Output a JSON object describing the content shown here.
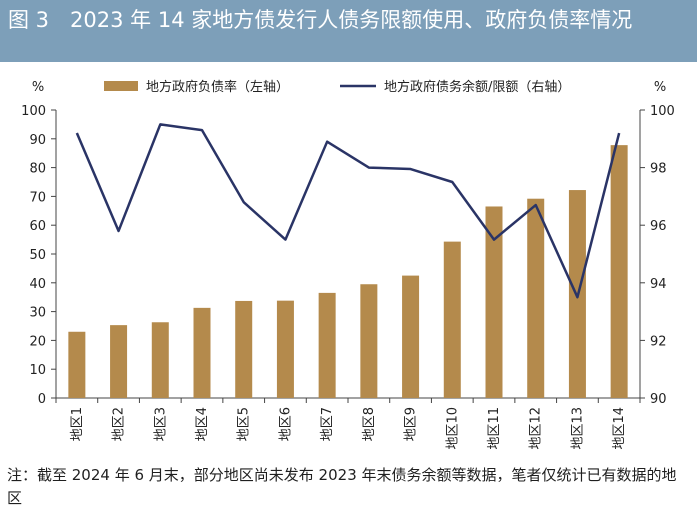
{
  "header": {
    "title": "图 3　2023 年 14 家地方债发行人债务限额使用、政府负债率情况"
  },
  "colors": {
    "header_bg": "#7d9fb9",
    "bar": "#b48a4c",
    "line": "#2a3466",
    "axis": "#444444"
  },
  "chart_data": {
    "type": "bar+line",
    "categories": [
      "地区1",
      "地区2",
      "地区3",
      "地区4",
      "地区5",
      "地区6",
      "地区7",
      "地区8",
      "地区9",
      "地区10",
      "地区11",
      "地区12",
      "地区13",
      "地区14"
    ],
    "series": [
      {
        "name": "地方政府负债率（左轴）",
        "type": "bar",
        "axis": "left",
        "values": [
          23,
          25.3,
          26.3,
          31.3,
          33.7,
          33.8,
          36.5,
          39.5,
          42.5,
          54.3,
          66.5,
          69.2,
          72.2,
          87.8
        ]
      },
      {
        "name": "地方政府债务余额/限额（右轴）",
        "type": "line",
        "axis": "right",
        "values": [
          99.2,
          95.8,
          99.5,
          99.3,
          96.8,
          95.5,
          98.9,
          98.0,
          97.95,
          97.5,
          95.5,
          96.7,
          93.5,
          99.2
        ]
      }
    ],
    "yaxis_left": {
      "unit": "%",
      "min": 0,
      "max": 100,
      "ticks": [
        0,
        10,
        20,
        30,
        40,
        50,
        60,
        70,
        80,
        90,
        100
      ]
    },
    "yaxis_right": {
      "unit": "%",
      "min": 90,
      "max": 100,
      "ticks": [
        90,
        92,
        94,
        96,
        98,
        100
      ]
    },
    "legend_position": "top",
    "grid": false
  },
  "footer": {
    "note": "注：截至 2024 年 6 月末，部分地区尚未发布 2023 年末债务余额等数据，笔者仅统计已有数据的地区"
  }
}
